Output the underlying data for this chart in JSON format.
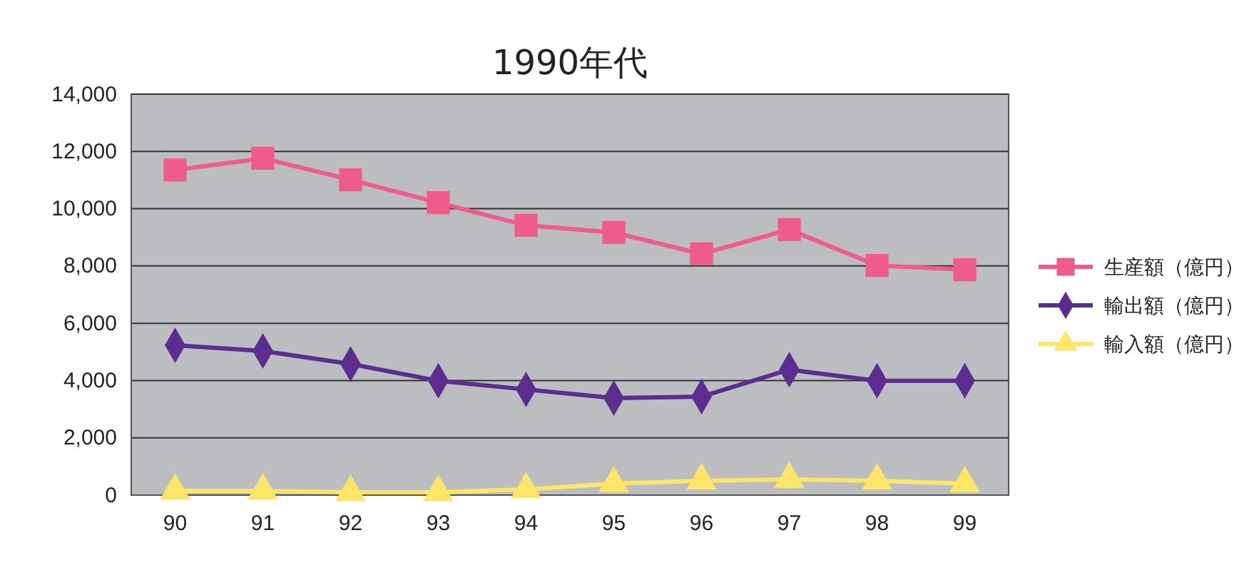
{
  "chart_data": {
    "type": "line",
    "title": "1990年代",
    "categories": [
      "90",
      "91",
      "92",
      "93",
      "94",
      "95",
      "96",
      "97",
      "98",
      "99"
    ],
    "series": [
      {
        "name": "生産額（億円）",
        "color": "#ef5b8a",
        "marker": "square",
        "values": [
          11350,
          11760,
          11010,
          10210,
          9420,
          9170,
          8420,
          9270,
          8020,
          7870
        ]
      },
      {
        "name": "輸出額（億円）",
        "color": "#5b2d90",
        "marker": "diamond",
        "values": [
          5230,
          5030,
          4580,
          3990,
          3690,
          3390,
          3440,
          4380,
          3990,
          3990
        ]
      },
      {
        "name": "輸入額（億円）",
        "color": "#fde667",
        "marker": "triangle",
        "values": [
          150,
          150,
          100,
          100,
          200,
          400,
          500,
          550,
          500,
          400
        ]
      }
    ],
    "ylim": [
      0,
      14000
    ],
    "yticks": [
      {
        "value": 0,
        "label": "0"
      },
      {
        "value": 2000,
        "label": "2,000"
      },
      {
        "value": 4000,
        "label": "4,000"
      },
      {
        "value": 6000,
        "label": "6,000"
      },
      {
        "value": 8000,
        "label": "8,000"
      },
      {
        "value": 10000,
        "label": "10,000"
      },
      {
        "value": 12000,
        "label": "12,000"
      },
      {
        "value": 14000,
        "label": "14,000"
      }
    ],
    "grid": "y",
    "legend": "right",
    "line_style": "solid"
  }
}
